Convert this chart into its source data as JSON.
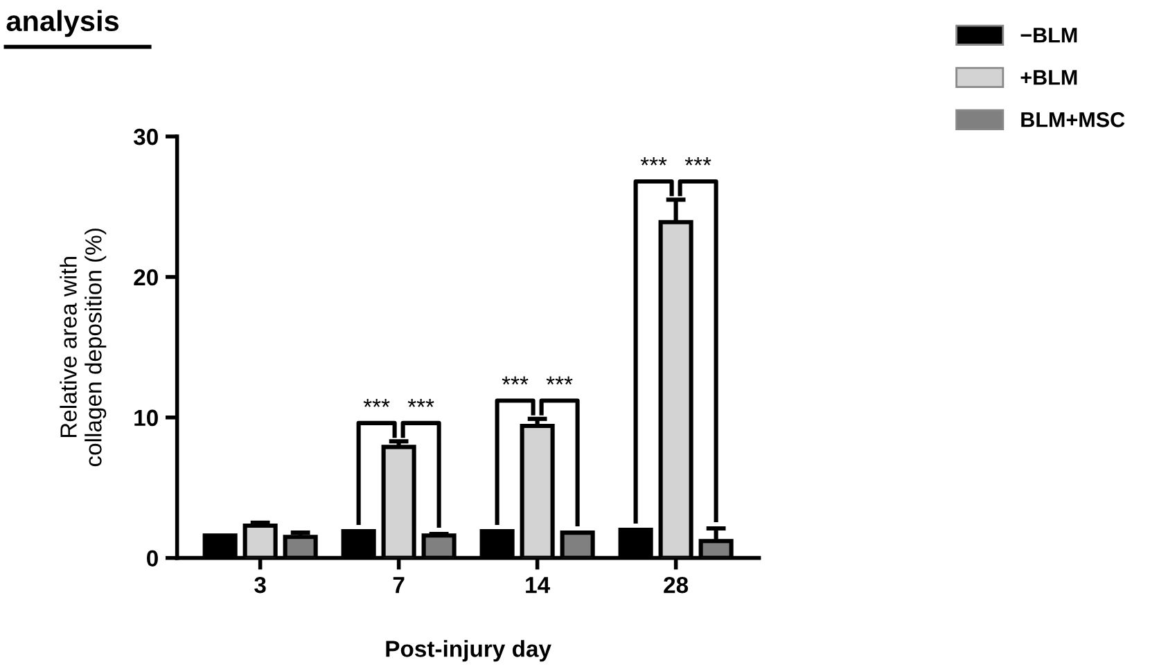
{
  "chart_data": {
    "type": "bar",
    "title": "analysis",
    "xlabel": "Post-injury day",
    "ylabel": "Relative area with\ncollagen deposition (%)",
    "categories": [
      "3",
      "7",
      "14",
      "28"
    ],
    "series": [
      {
        "name": "−BLM",
        "color": "#000000",
        "values": [
          1.6,
          1.9,
          1.9,
          2.0
        ],
        "errors": [
          null,
          null,
          null,
          null
        ]
      },
      {
        "name": "+BLM",
        "color": "#d3d3d3",
        "values": [
          2.3,
          7.9,
          9.4,
          23.9
        ],
        "errors": [
          0.2,
          0.4,
          0.5,
          1.6
        ]
      },
      {
        "name": "BLM+MSC",
        "color": "#808080",
        "values": [
          1.5,
          1.6,
          1.8,
          1.2
        ],
        "errors": [
          0.3,
          0.1,
          null,
          0.9
        ]
      }
    ],
    "ylim": [
      0,
      30
    ],
    "yticks": [
      0,
      10,
      20,
      30
    ],
    "grid": false,
    "legend": "top right",
    "annotations": [
      "***",
      "***",
      "***",
      "***",
      "***",
      "***"
    ]
  }
}
